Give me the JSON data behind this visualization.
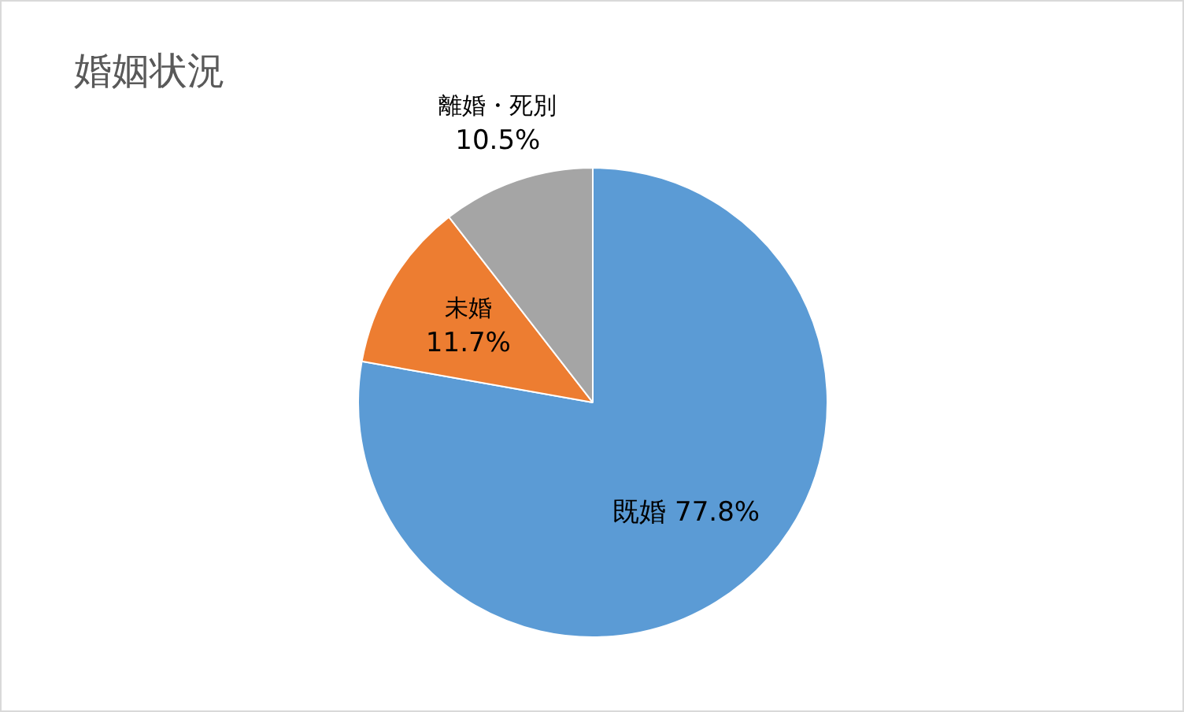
{
  "chart_data": {
    "type": "pie",
    "title": "婚姻状況",
    "categories": [
      "既婚",
      "未婚",
      "離婚・死別"
    ],
    "values": [
      77.8,
      11.7,
      10.5
    ],
    "value_labels": [
      "77.8%",
      "11.7%",
      "10.5%"
    ],
    "colors": [
      "#5b9bd5",
      "#ed7d31",
      "#a5a5a5"
    ],
    "legend": false
  }
}
